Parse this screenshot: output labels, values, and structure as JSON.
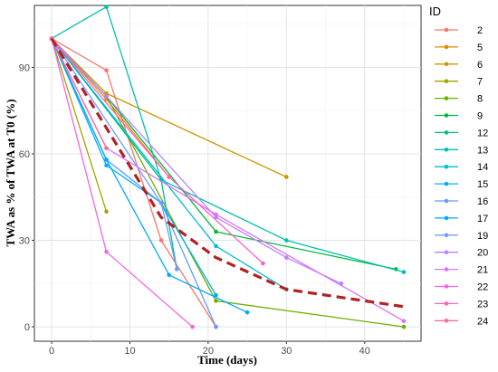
{
  "chart_data": {
    "type": "line",
    "xlabel": "Time (days)",
    "ylabel": "TWA as % of TWA at T0 (%)",
    "xlim": [
      -2.2,
      47.2
    ],
    "ylim": [
      -5,
      111.5
    ],
    "xticks": [
      0,
      10,
      20,
      30,
      40
    ],
    "yticks": [
      0,
      30,
      60,
      90
    ],
    "grid": true,
    "legend_title": "ID",
    "legend_position": "right",
    "series": [
      {
        "name": "2",
        "color": "#F8766D",
        "x": [
          0,
          7,
          14,
          21
        ],
        "y": [
          100,
          89,
          30,
          0
        ]
      },
      {
        "name": "5",
        "color": "#E58700",
        "x": [
          0,
          7,
          15
        ],
        "y": [
          100,
          79,
          52
        ]
      },
      {
        "name": "6",
        "color": "#C99800",
        "x": [
          0,
          7,
          30
        ],
        "y": [
          100,
          81,
          52
        ]
      },
      {
        "name": "7",
        "color": "#A3A500",
        "x": [
          0,
          7
        ],
        "y": [
          100,
          40
        ]
      },
      {
        "name": "8",
        "color": "#6BB100",
        "x": [
          0,
          7,
          21,
          45
        ],
        "y": [
          100,
          80,
          9,
          0
        ]
      },
      {
        "name": "9",
        "color": "#00BA38",
        "x": [
          0,
          7,
          21,
          44
        ],
        "y": [
          100,
          80,
          33,
          20
        ]
      },
      {
        "name": "12",
        "color": "#00BF7D",
        "x": [
          0,
          14,
          16
        ],
        "y": [
          100,
          51,
          20
        ]
      },
      {
        "name": "13",
        "color": "#00C0AF",
        "x": [
          0,
          7,
          14,
          30,
          45
        ],
        "y": [
          100,
          111,
          51,
          30,
          19
        ]
      },
      {
        "name": "14",
        "color": "#00BCD8",
        "x": [
          0,
          21,
          30
        ],
        "y": [
          100,
          28,
          13
        ]
      },
      {
        "name": "15",
        "color": "#00B0F6",
        "x": [
          0,
          7,
          14,
          21
        ],
        "y": [
          100,
          56,
          43,
          11
        ]
      },
      {
        "name": "16",
        "color": "#619CFF",
        "x": [
          0,
          7,
          14,
          21
        ],
        "y": [
          100,
          58,
          43,
          0
        ]
      },
      {
        "name": "17",
        "color": "#00A9FF",
        "x": [
          0,
          7,
          15,
          25
        ],
        "y": [
          100,
          58,
          18,
          5
        ]
      },
      {
        "name": "19",
        "color": "#6F9CFF",
        "x": [
          0,
          14,
          16
        ],
        "y": [
          100,
          43,
          20
        ]
      },
      {
        "name": "20",
        "color": "#B983FF",
        "x": [
          0,
          7,
          21,
          30,
          37
        ],
        "y": [
          100,
          80,
          38,
          24,
          15
        ]
      },
      {
        "name": "21",
        "color": "#DB72FB",
        "x": [
          0,
          7,
          21,
          45
        ],
        "y": [
          100,
          62,
          39,
          2
        ]
      },
      {
        "name": "22",
        "color": "#F564E3",
        "x": [
          0,
          7,
          18
        ],
        "y": [
          100,
          26,
          0
        ]
      },
      {
        "name": "23",
        "color": "#FF61C3",
        "x": [
          0,
          15,
          27
        ],
        "y": [
          100,
          52,
          22
        ]
      },
      {
        "name": "24",
        "color": "#FF6C91",
        "x": [
          0,
          7
        ],
        "y": [
          100,
          62
        ]
      }
    ],
    "trend": {
      "color": "#b22222",
      "x": [
        0,
        7,
        14,
        21,
        30,
        45
      ],
      "y": [
        100,
        69,
        38,
        24,
        13,
        7
      ]
    }
  }
}
